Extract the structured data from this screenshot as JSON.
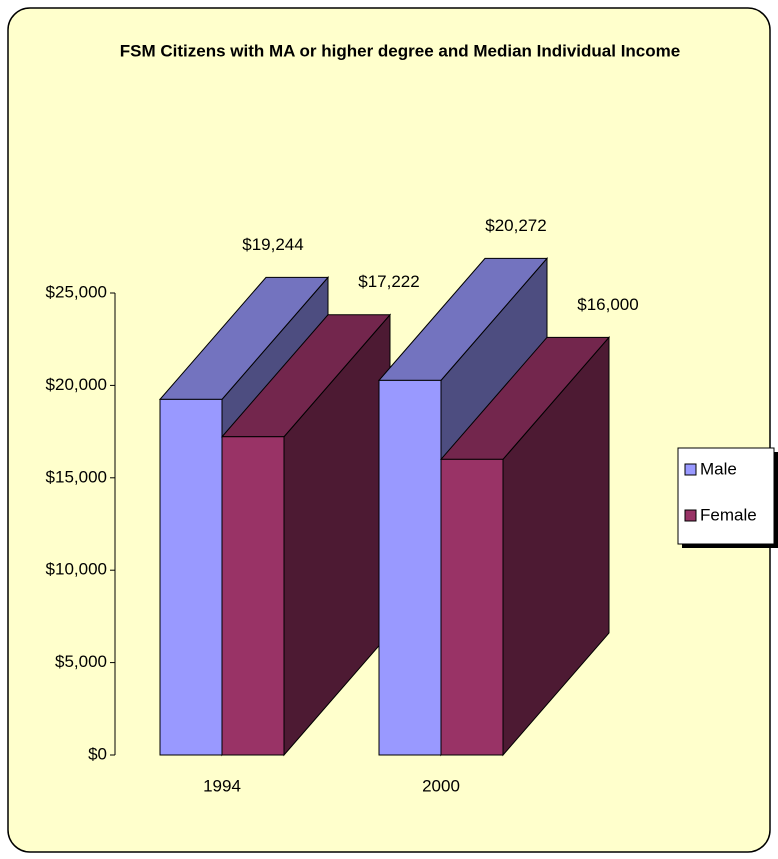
{
  "chart_data": {
    "type": "bar3d",
    "title": "FSM Citizens with MA or higher degree and Median Individual Income",
    "categories": [
      "1994",
      "2000"
    ],
    "series": [
      {
        "name": "Male",
        "color": "#9999ff",
        "values": [
          19244,
          20272
        ],
        "value_labels": [
          "$19,244",
          "$20,272"
        ]
      },
      {
        "name": "Female",
        "color": "#993366",
        "values": [
          17222,
          16000
        ],
        "value_labels": [
          "$17,222",
          "$16,000"
        ]
      }
    ],
    "ylim": [
      0,
      25000
    ],
    "yticks": [
      {
        "value": 0,
        "label": "$0"
      },
      {
        "value": 5000,
        "label": "$5,000"
      },
      {
        "value": 10000,
        "label": "$10,000"
      },
      {
        "value": 15000,
        "label": "$15,000"
      },
      {
        "value": 20000,
        "label": "$20,000"
      },
      {
        "value": 25000,
        "label": "$25,000"
      }
    ],
    "legend": "right"
  }
}
